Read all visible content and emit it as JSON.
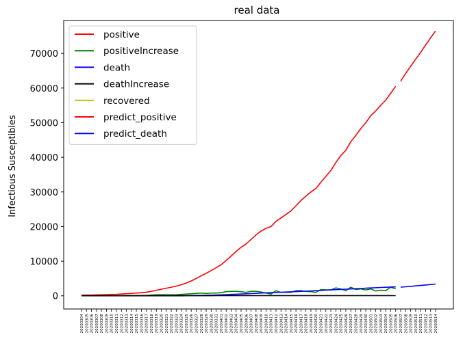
{
  "chart_data": {
    "type": "line",
    "title": "real data",
    "ylabel": "Infectious Susceptibles",
    "xlabel": "",
    "ylim": [
      -3800,
      79500
    ],
    "yticks": [
      0,
      10000,
      20000,
      30000,
      40000,
      50000,
      60000,
      70000
    ],
    "ytick_labels": [
      "0",
      "10000",
      "20000",
      "30000",
      "40000",
      "50000",
      "60000",
      "70000"
    ],
    "grid": false,
    "legend_position": "upper-left",
    "x_dates": [
      "20200304",
      "20200305",
      "20200306",
      "20200307",
      "20200308",
      "20200309",
      "20200310",
      "20200311",
      "20200312",
      "20200313",
      "20200314",
      "20200315",
      "20200316",
      "20200317",
      "20200318",
      "20200319",
      "20200320",
      "20200321",
      "20200322",
      "20200323",
      "20200324",
      "20200325",
      "20200326",
      "20200327",
      "20200328",
      "20200329",
      "20200330",
      "20200331",
      "20200401",
      "20200402",
      "20200403",
      "20200404",
      "20200405",
      "20200406",
      "20200407",
      "20200408",
      "20200409",
      "20200410",
      "20200411",
      "20200412",
      "20200413",
      "20200414",
      "20200415",
      "20200416",
      "20200417",
      "20200418",
      "20200419",
      "20200420",
      "20200421",
      "20200422",
      "20200423",
      "20200424",
      "20200425",
      "20200426",
      "20200427",
      "20200428",
      "20200429",
      "20200430",
      "20200501",
      "20200502",
      "20200503",
      "20200504",
      "20200505",
      "20200506",
      "20200507",
      "20200508",
      "20200509",
      "20200510",
      "20200511",
      "20200512",
      "20200513",
      "20200514"
    ],
    "series": [
      {
        "name": "positive",
        "color": "#ff0000",
        "x_start": "20200304",
        "values": [
          200,
          220,
          250,
          280,
          310,
          350,
          400,
          450,
          520,
          600,
          700,
          800,
          900,
          1050,
          1300,
          1600,
          1900,
          2200,
          2500,
          2800,
          3200,
          3700,
          4300,
          5000,
          5800,
          6500,
          7300,
          8100,
          9000,
          10200,
          11500,
          12800,
          14000,
          15000,
          16300,
          17600,
          18700,
          19500,
          20000,
          21500,
          22500,
          23500,
          24500,
          26000,
          27500,
          28800,
          30000,
          31000,
          32800,
          34500,
          36200,
          38500,
          40500,
          42000,
          44500,
          46300,
          48300,
          50000,
          52000,
          53400,
          55000,
          56500,
          58500,
          60500
        ]
      },
      {
        "name": "positiveIncrease",
        "color": "#008000",
        "x_start": "20200304",
        "values": [
          0,
          20,
          30,
          30,
          30,
          40,
          50,
          50,
          70,
          80,
          100,
          100,
          100,
          150,
          250,
          300,
          300,
          300,
          300,
          300,
          400,
          500,
          600,
          700,
          800,
          700,
          800,
          800,
          900,
          1200,
          1300,
          1300,
          1200,
          1000,
          1300,
          1300,
          1100,
          800,
          500,
          1500,
          1000,
          1000,
          1000,
          1500,
          1500,
          1300,
          1200,
          1000,
          1800,
          1700,
          1700,
          2300,
          2000,
          1500,
          2500,
          1800,
          2000,
          1700,
          2000,
          1400,
          1600,
          1500,
          2500,
          2000
        ]
      },
      {
        "name": "death",
        "color": "#0000ff",
        "x_start": "20200304",
        "values": [
          0,
          0,
          0,
          0,
          1,
          2,
          3,
          4,
          5,
          6,
          8,
          10,
          12,
          15,
          20,
          25,
          30,
          40,
          50,
          60,
          70,
          90,
          110,
          130,
          150,
          180,
          210,
          250,
          290,
          340,
          400,
          460,
          520,
          580,
          650,
          720,
          790,
          860,
          920,
          980,
          1040,
          1100,
          1160,
          1220,
          1290,
          1360,
          1430,
          1500,
          1570,
          1640,
          1710,
          1780,
          1850,
          1920,
          1990,
          2060,
          2130,
          2200,
          2270,
          2340,
          2410,
          2470,
          2530,
          2580
        ]
      },
      {
        "name": "deathIncrease",
        "color": "#000000",
        "x_start": "20200304",
        "values": [
          0,
          0,
          0,
          0,
          1,
          1,
          1,
          1,
          1,
          1,
          2,
          2,
          2,
          3,
          5,
          5,
          5,
          10,
          10,
          10,
          10,
          20,
          20,
          20,
          20,
          30,
          30,
          40,
          40,
          50,
          60,
          60,
          60,
          60,
          70,
          70,
          70,
          70,
          60,
          60,
          60,
          60,
          60,
          60,
          70,
          70,
          70,
          70,
          70,
          70,
          70,
          70,
          70,
          70,
          70,
          70,
          70,
          70,
          70,
          70,
          60,
          60,
          60,
          50
        ]
      },
      {
        "name": "recovered",
        "color": "#bfbf00",
        "x_start": "20200304",
        "values": []
      },
      {
        "name": "predict_positive",
        "color": "#ff0000",
        "x_start": "20200507",
        "values": [
          62000,
          64200,
          66300,
          68300,
          70300,
          72400,
          74500,
          76500
        ]
      },
      {
        "name": "predict_death",
        "color": "#0000ff",
        "x_start": "20200507",
        "values": [
          2500,
          2620,
          2740,
          2870,
          3000,
          3130,
          3260,
          3400
        ]
      }
    ]
  }
}
